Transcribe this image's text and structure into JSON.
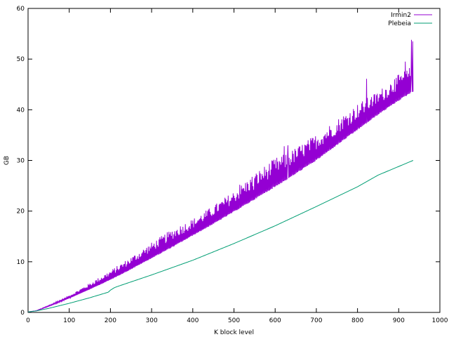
{
  "chart_data": {
    "type": "line",
    "xlabel": "K block level",
    "ylabel": "GB",
    "xlim": [
      0,
      1000
    ],
    "ylim": [
      0,
      60
    ],
    "xticks": [
      0,
      100,
      200,
      300,
      400,
      500,
      600,
      700,
      800,
      900,
      1000
    ],
    "yticks": [
      0,
      10,
      20,
      30,
      40,
      50,
      60
    ],
    "grid": false,
    "legend_position": "top-right",
    "series": [
      {
        "name": "Irmin2",
        "color": "#9400d3",
        "style": "oscillating",
        "base": [
          [
            0,
            0.1
          ],
          [
            20,
            0.3
          ],
          [
            50,
            1.2
          ],
          [
            100,
            2.8
          ],
          [
            150,
            4.6
          ],
          [
            200,
            6.5
          ],
          [
            250,
            8.6
          ],
          [
            300,
            10.8
          ],
          [
            350,
            13.0
          ],
          [
            400,
            15.3
          ],
          [
            450,
            17.6
          ],
          [
            500,
            20.0
          ],
          [
            550,
            22.5
          ],
          [
            600,
            25.0
          ],
          [
            630,
            26.5
          ],
          [
            700,
            30.2
          ],
          [
            750,
            33.2
          ],
          [
            800,
            36.2
          ],
          [
            850,
            39.2
          ],
          [
            900,
            42.0
          ],
          [
            935,
            43.8
          ]
        ],
        "amplitude": [
          [
            0,
            0
          ],
          [
            50,
            0.2
          ],
          [
            100,
            0.6
          ],
          [
            150,
            1.2
          ],
          [
            200,
            1.8
          ],
          [
            250,
            2.4
          ],
          [
            300,
            3.0
          ],
          [
            350,
            3.5
          ],
          [
            400,
            3.2
          ],
          [
            450,
            3.5
          ],
          [
            500,
            4.0
          ],
          [
            550,
            5.0
          ],
          [
            600,
            5.5
          ],
          [
            630,
            5.0
          ],
          [
            700,
            5.0
          ],
          [
            750,
            5.0
          ],
          [
            800,
            5.0
          ],
          [
            850,
            4.5
          ],
          [
            900,
            5.0
          ],
          [
            935,
            5.0
          ]
        ],
        "spikes": [
          [
            406,
            17.5
          ],
          [
            514,
            25.2
          ],
          [
            548,
            24.2
          ],
          [
            622,
            32.8
          ],
          [
            631,
            33.0
          ],
          [
            748,
            35.5
          ],
          [
            822,
            46.1
          ],
          [
            832,
            42.0
          ],
          [
            890,
            46.0
          ],
          [
            916,
            49.5
          ],
          [
            931,
            53.8
          ],
          [
            934,
            53.5
          ]
        ]
      },
      {
        "name": "Plebeia",
        "color": "#009e73",
        "style": "smooth",
        "points": [
          [
            0,
            0.1
          ],
          [
            20,
            0.3
          ],
          [
            50,
            0.8
          ],
          [
            100,
            1.8
          ],
          [
            150,
            2.9
          ],
          [
            195,
            4.0
          ],
          [
            200,
            4.4
          ],
          [
            210,
            4.9
          ],
          [
            220,
            5.2
          ],
          [
            300,
            7.4
          ],
          [
            400,
            10.3
          ],
          [
            500,
            13.6
          ],
          [
            600,
            17.1
          ],
          [
            700,
            20.9
          ],
          [
            800,
            24.8
          ],
          [
            850,
            27.1
          ],
          [
            935,
            30.0
          ]
        ]
      }
    ]
  }
}
